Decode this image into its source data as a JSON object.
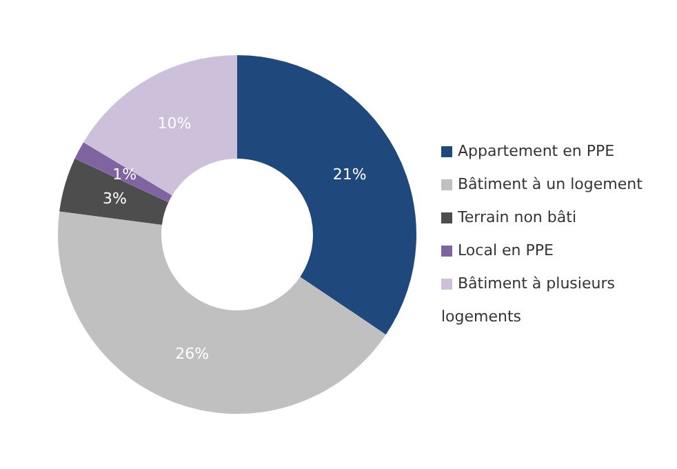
{
  "chart_data": {
    "type": "donut",
    "categories": [
      "Appartement en PPE",
      "Bâtiment à un logement",
      "Terrain non bâti",
      "Local en PPE",
      "Bâtiment à plusieurs logements"
    ],
    "values": [
      21,
      26,
      3,
      1,
      10
    ],
    "colors": [
      "#1f497d",
      "#c0c0c0",
      "#4d4d4d",
      "#8064a2",
      "#ccc0da"
    ],
    "value_labels": [
      "21%",
      "26%",
      "3%",
      "1%",
      "10%"
    ],
    "legend": "right"
  }
}
